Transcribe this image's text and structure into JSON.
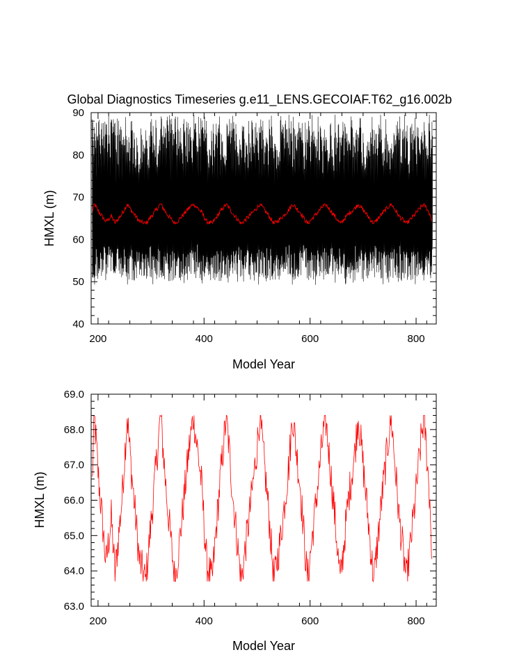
{
  "figure": {
    "title": "Global Diagnostics Timeseries g.e11_LENS.GECOIAF.T62_g16.002b"
  },
  "colors": {
    "raw_series": "#000000",
    "smoothed_series": "#ff0000",
    "axes": "#000000",
    "background": "#ffffff"
  },
  "chart_data": [
    {
      "type": "line",
      "title": "Global Diagnostics Timeseries g.e11_LENS.GECOIAF.T62_g16.002b",
      "xlabel": "Model Year",
      "ylabel": "HMXL (m)",
      "xlim": [
        187,
        838
      ],
      "ylim": [
        40,
        90
      ],
      "xticks": [
        200,
        400,
        600,
        800
      ],
      "xtick_labels": [
        "200",
        "400",
        "600",
        "800"
      ],
      "yticks": [
        40,
        50,
        60,
        70,
        80,
        90
      ],
      "ytick_labels": [
        "40",
        "50",
        "60",
        "70",
        "80",
        "90"
      ],
      "grid": false,
      "legend": "none",
      "series": [
        {
          "kind": "monthly",
          "color": "#000000",
          "x_start": 189,
          "x_end": 830,
          "description_min": 50,
          "description_max": 89,
          "seasonal_cycle_low": [
            52,
            58
          ],
          "seasonal_cycle_high": [
            76,
            89
          ]
        },
        {
          "kind": "annual",
          "color": "#ff0000",
          "x_start": 189,
          "x_end": 830,
          "cycle_period_years": 62,
          "min": 63.7,
          "max": 68.4
        }
      ]
    },
    {
      "type": "line",
      "title": "",
      "xlabel": "Model Year",
      "ylabel": "HMXL (m)",
      "xlim": [
        187,
        838
      ],
      "ylim": [
        63.0,
        69.0
      ],
      "xticks": [
        200,
        400,
        600,
        800
      ],
      "xtick_labels": [
        "200",
        "400",
        "600",
        "800"
      ],
      "yticks": [
        63,
        64,
        65,
        66,
        67,
        68,
        69
      ],
      "ytick_labels": [
        "63.0",
        "64.0",
        "65.0",
        "66.0",
        "67.0",
        "68.0",
        "69.0"
      ],
      "grid": false,
      "legend": "none",
      "series": [
        {
          "kind": "annual",
          "color": "#ff0000",
          "x_start": 189,
          "x_end": 830,
          "cycle_period_years": 62,
          "min": 63.7,
          "max": 68.4,
          "anchor_points": [
            [
              189,
              66.5
            ],
            [
              193,
              68.4
            ],
            [
              200,
              66.8
            ],
            [
              215,
              64.2
            ],
            [
              225,
              65.5
            ],
            [
              232,
              63.9
            ],
            [
              245,
              66.0
            ],
            [
              255,
              68.4
            ],
            [
              262,
              67.0
            ],
            [
              278,
              64.3
            ],
            [
              290,
              63.7
            ],
            [
              305,
              66.2
            ],
            [
              318,
              68.4
            ],
            [
              330,
              66.0
            ],
            [
              345,
              63.7
            ],
            [
              355,
              65.0
            ],
            [
              372,
              67.5
            ],
            [
              380,
              68.4
            ],
            [
              395,
              66.5
            ],
            [
              405,
              64.2
            ],
            [
              415,
              63.7
            ],
            [
              430,
              66.5
            ],
            [
              442,
              68.4
            ],
            [
              455,
              66.0
            ],
            [
              470,
              63.7
            ],
            [
              485,
              65.5
            ],
            [
              500,
              67.5
            ],
            [
              505,
              68.4
            ],
            [
              520,
              66.0
            ],
            [
              532,
              63.7
            ],
            [
              545,
              65.0
            ],
            [
              560,
              67.0
            ],
            [
              567,
              68.4
            ],
            [
              582,
              66.3
            ],
            [
              595,
              63.7
            ],
            [
              608,
              65.5
            ],
            [
              622,
              67.5
            ],
            [
              629,
              68.4
            ],
            [
              645,
              65.8
            ],
            [
              657,
              63.7
            ],
            [
              672,
              66.0
            ],
            [
              684,
              67.3
            ],
            [
              691,
              68.4
            ],
            [
              705,
              66.2
            ],
            [
              720,
              63.7
            ],
            [
              735,
              66.0
            ],
            [
              746,
              67.5
            ],
            [
              753,
              68.4
            ],
            [
              768,
              65.5
            ],
            [
              782,
              63.7
            ],
            [
              797,
              65.8
            ],
            [
              810,
              67.8
            ],
            [
              815,
              68.4
            ],
            [
              826,
              66.0
            ],
            [
              830,
              64.3
            ]
          ]
        }
      ]
    }
  ]
}
